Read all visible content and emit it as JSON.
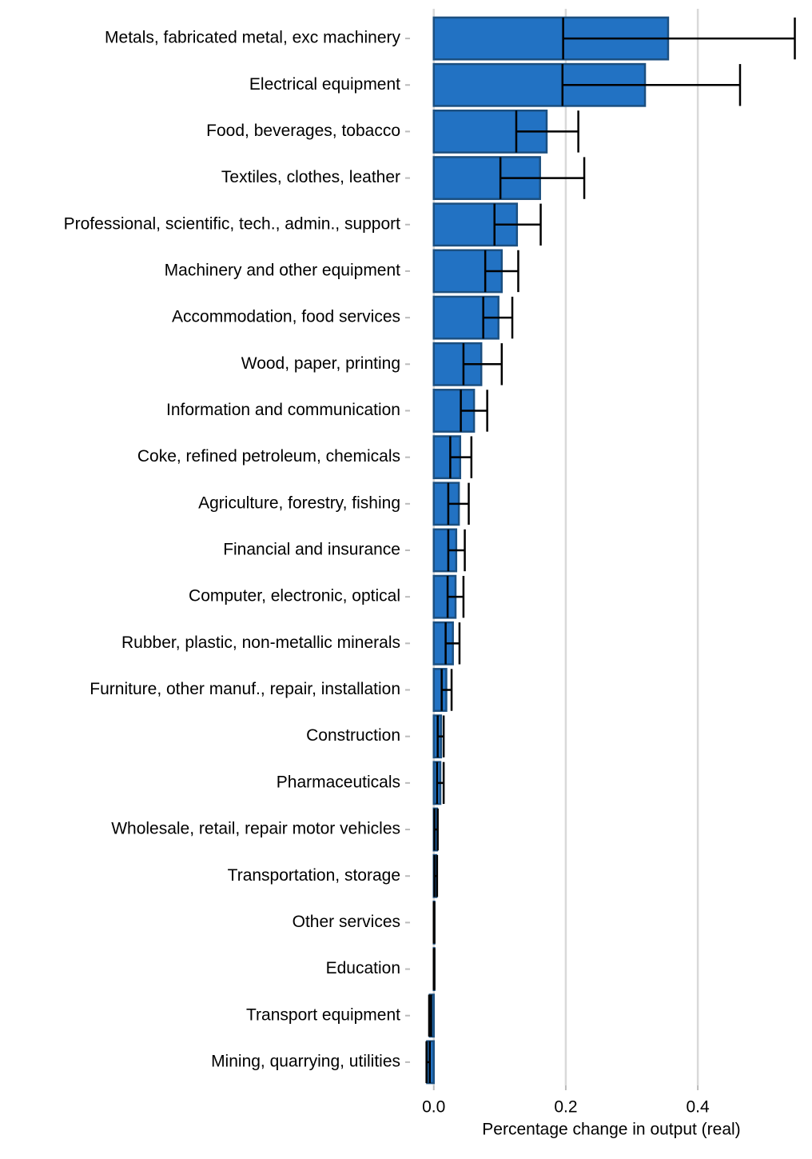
{
  "chart_data": {
    "type": "bar",
    "orientation": "horizontal",
    "x_label": "Percentage change in output (real)",
    "categories": [
      "Metals, fabricated metal, exc machinery",
      "Electrical equipment",
      "Food, beverages, tobacco",
      "Textiles, clothes, leather",
      "Professional, scientific, tech., admin., support",
      "Machinery and other equipment",
      "Accommodation, food services",
      "Wood, paper, printing",
      "Information and communication",
      "Coke, refined petroleum, chemicals",
      "Agriculture, forestry, fishing",
      "Financial and insurance",
      "Computer, electronic, optical",
      "Rubber, plastic, non-metallic minerals",
      "Furniture, other manuf., repair, installation",
      "Construction",
      "Pharmaceuticals",
      "Wholesale, retail, repair motor vehicles",
      "Transportation, storage",
      "Other services",
      "Education",
      "Transport equipment",
      "Mining, quarrying, utilities"
    ],
    "values": [
      0.355,
      0.32,
      0.171,
      0.161,
      0.126,
      0.103,
      0.098,
      0.072,
      0.061,
      0.04,
      0.038,
      0.034,
      0.033,
      0.029,
      0.019,
      0.011,
      0.01,
      0.005,
      0.004,
      0.001,
      0.001,
      -0.006,
      -0.01
    ],
    "error_low": [
      0.196,
      0.195,
      0.125,
      0.101,
      0.092,
      0.078,
      0.075,
      0.045,
      0.041,
      0.025,
      0.022,
      0.022,
      0.021,
      0.018,
      0.012,
      0.006,
      0.005,
      0.001,
      0.001,
      0,
      0,
      -0.007,
      -0.011
    ],
    "error_high": [
      0.547,
      0.464,
      0.219,
      0.228,
      0.162,
      0.128,
      0.119,
      0.103,
      0.081,
      0.057,
      0.053,
      0.047,
      0.045,
      0.039,
      0.027,
      0.015,
      0.015,
      0.006,
      0.005,
      0.001,
      0.001,
      -0.004,
      -0.006
    ],
    "color": "#2272c3",
    "edge_color": "#1b4f80",
    "xlim": [
      -0.036,
      0.573
    ],
    "xticks": [
      {
        "value": 0,
        "label": "0.0"
      },
      0.2,
      0.4
    ],
    "grid": true
  }
}
